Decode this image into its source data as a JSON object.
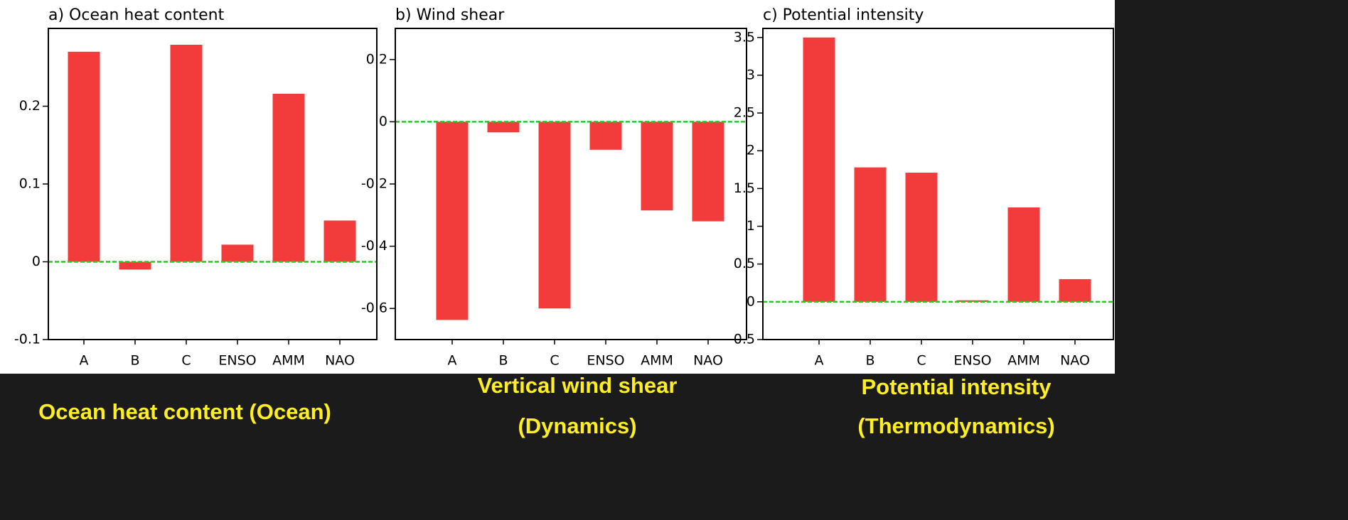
{
  "chart_data": [
    {
      "type": "bar",
      "title": "a) Ocean heat content",
      "caption": [
        "Ocean heat content (Ocean)"
      ],
      "categories": [
        "A",
        "B",
        "C",
        "ENSO",
        "AMM",
        "NAO"
      ],
      "values": [
        0.27,
        -0.01,
        0.279,
        0.022,
        0.216,
        0.053
      ],
      "color": "#f23b3b",
      "baseline_color": "#22cc22",
      "ylim": [
        -0.1,
        0.3
      ],
      "yticks": [
        -0.1,
        0,
        0.1,
        0.2
      ]
    },
    {
      "type": "bar",
      "title": "b) Wind shear",
      "caption": [
        "Vertical wind shear",
        "(Dynamics)"
      ],
      "categories": [
        "A",
        "B",
        "C",
        "ENSO",
        "AMM",
        "NAO"
      ],
      "values": [
        -0.637,
        -0.034,
        -0.6,
        -0.09,
        -0.285,
        -0.32
      ],
      "color": "#f23b3b",
      "baseline_color": "#22cc22",
      "ylim": [
        -0.7,
        0.3
      ],
      "yticks": [
        -0.6,
        -0.4,
        -0.2,
        0,
        0.2
      ]
    },
    {
      "type": "bar",
      "title": "c) Potential intensity",
      "caption": [
        "Potential intensity",
        "(Thermodynamics)"
      ],
      "categories": [
        "A",
        "B",
        "C",
        "ENSO",
        "AMM",
        "NAO"
      ],
      "values": [
        3.5,
        1.78,
        1.71,
        0.02,
        1.25,
        0.3
      ],
      "color": "#f23b3b",
      "baseline_color": "#22cc22",
      "ylim": [
        -0.5,
        3.62
      ],
      "yticks": [
        -0.5,
        0,
        0.5,
        1,
        1.5,
        2,
        2.5,
        3,
        3.5
      ]
    }
  ]
}
